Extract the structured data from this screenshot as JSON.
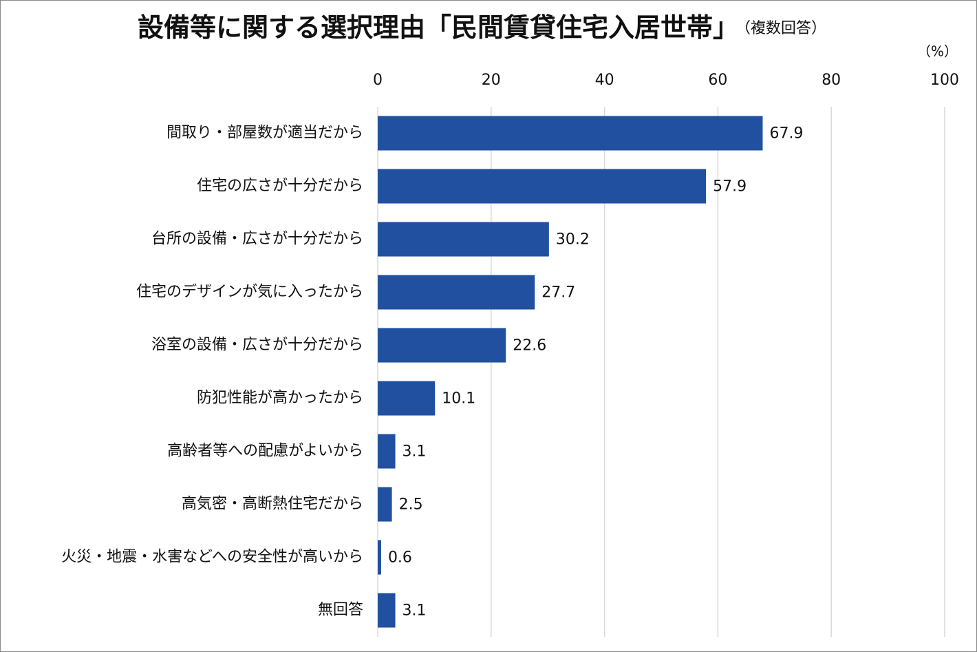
{
  "chart_data": {
    "type": "bar",
    "title": "設備等に関する選択理由「民間賃貸住宅入居世帯」",
    "subtitle": "（複数回答）",
    "unit": "（%）",
    "categories": [
      "間取り・部屋数が適当だから",
      "住宅の広さが十分だから",
      "台所の設備・広さが十分だから",
      "住宅のデザインが気に入ったから",
      "浴室の設備・広さが十分だから",
      "防犯性能が高かったから",
      "高齢者等への配慮がよいから",
      "高気密・高断熱住宅だから",
      "火災・地震・水害などへの安全性が高いから",
      "無回答"
    ],
    "values": [
      67.9,
      57.9,
      30.2,
      27.7,
      22.6,
      10.1,
      3.1,
      2.5,
      0.6,
      3.1
    ],
    "color": "#2150a0",
    "xlim": [
      0,
      100
    ],
    "xticks": [
      0,
      20,
      40,
      60,
      80,
      100
    ],
    "grid": true
  }
}
